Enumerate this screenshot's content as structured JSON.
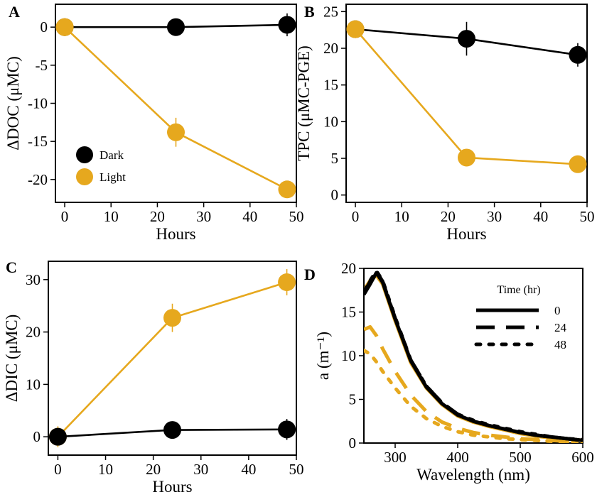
{
  "colors": {
    "dark": "#000000",
    "light": "#E6A81E"
  },
  "chart_data": [
    {
      "panel": "A",
      "type": "line",
      "xlabel": "Hours",
      "ylabel": "ΔDOC (μMC)",
      "xlim": [
        -2,
        50
      ],
      "ylim": [
        -23,
        3
      ],
      "xticks": [
        0,
        10,
        20,
        30,
        40,
        50
      ],
      "yticks": [
        0,
        -5,
        -10,
        -15,
        -20
      ],
      "legend": {
        "position": "bottom-left",
        "entries": [
          "Dark",
          "Light"
        ]
      },
      "series": [
        {
          "name": "Dark",
          "color": "#000000",
          "x": [
            0,
            24,
            48
          ],
          "y": [
            0,
            0,
            0.3
          ],
          "err": [
            0.3,
            0.5,
            1.5
          ]
        },
        {
          "name": "Light",
          "color": "#E6A81E",
          "x": [
            0,
            24,
            48
          ],
          "y": [
            0,
            -13.8,
            -21.3
          ],
          "err": [
            0.3,
            1.9,
            0.6
          ]
        }
      ]
    },
    {
      "panel": "B",
      "type": "line",
      "xlabel": "Hours",
      "ylabel": "TPC (μMC-PGE)",
      "xlim": [
        -2,
        50
      ],
      "ylim": [
        -1,
        26
      ],
      "xticks": [
        0,
        10,
        20,
        30,
        40,
        50
      ],
      "yticks": [
        0,
        5,
        10,
        15,
        20,
        25
      ],
      "series": [
        {
          "name": "Dark",
          "color": "#000000",
          "x": [
            0,
            24,
            48
          ],
          "y": [
            22.6,
            21.3,
            19.1
          ],
          "err": [
            0.5,
            2.3,
            1.6
          ]
        },
        {
          "name": "Light",
          "color": "#E6A81E",
          "x": [
            0,
            24,
            48
          ],
          "y": [
            22.6,
            5.1,
            4.2
          ],
          "err": [
            0.9,
            0.4,
            0.5
          ]
        }
      ]
    },
    {
      "panel": "C",
      "type": "line",
      "xlabel": "Hours",
      "ylabel": "ΔDIC (μMC)",
      "xlim": [
        -2,
        50
      ],
      "ylim": [
        -3.5,
        33.5
      ],
      "xticks": [
        0,
        10,
        20,
        30,
        40,
        50
      ],
      "yticks": [
        0,
        10,
        20,
        30
      ],
      "series": [
        {
          "name": "Dark",
          "color": "#000000",
          "x": [
            0,
            24,
            48
          ],
          "y": [
            0,
            1.3,
            1.4
          ],
          "err": [
            0.3,
            0.5,
            2.0
          ]
        },
        {
          "name": "Light",
          "color": "#E6A81E",
          "x": [
            0,
            24,
            48
          ],
          "y": [
            0,
            22.7,
            29.5
          ],
          "err": [
            2.0,
            2.7,
            2.5
          ]
        }
      ]
    },
    {
      "panel": "D",
      "type": "line",
      "xlabel": "Wavelength (nm)",
      "ylabel": "a (m⁻¹)",
      "xlim": [
        250,
        600
      ],
      "ylim": [
        0,
        20
      ],
      "xticks": [
        300,
        400,
        500,
        600
      ],
      "yticks": [
        0,
        5,
        10,
        15,
        20
      ],
      "legend": {
        "position": "top-right",
        "title": "Time (hr)",
        "entries": [
          "0",
          "24",
          "48"
        ]
      },
      "wavelengths": [
        250,
        260,
        270,
        280,
        300,
        325,
        350,
        375,
        400,
        425,
        450,
        475,
        500,
        525,
        550,
        575,
        600
      ],
      "series": [
        {
          "name": "Dark 0 hr",
          "color": "#000000",
          "style": "solid",
          "y": [
            17.0,
            18.2,
            19.5,
            18.4,
            14.2,
            9.4,
            6.4,
            4.5,
            3.2,
            2.5,
            2.0,
            1.6,
            1.2,
            0.9,
            0.7,
            0.5,
            0.3
          ]
        },
        {
          "name": "Dark 24 hr",
          "color": "#000000",
          "style": "dashed",
          "y": [
            17.2,
            18.5,
            19.6,
            18.5,
            14.3,
            9.5,
            6.5,
            4.6,
            3.3,
            2.5,
            2.0,
            1.6,
            1.2,
            0.9,
            0.7,
            0.5,
            0.3
          ]
        },
        {
          "name": "Dark 48 hr",
          "color": "#000000",
          "style": "dotted",
          "y": [
            17.4,
            18.6,
            19.7,
            18.6,
            14.4,
            9.5,
            6.5,
            4.6,
            3.3,
            2.6,
            2.1,
            1.7,
            1.3,
            1.0,
            0.7,
            0.5,
            0.4
          ]
        },
        {
          "name": "Light 0 hr",
          "color": "#E6A81E",
          "style": "solid",
          "y": [
            17.5,
            18.6,
            19.2,
            18.2,
            14.0,
            9.2,
            6.3,
            4.4,
            3.1,
            2.4,
            1.9,
            1.5,
            1.1,
            0.8,
            0.6,
            0.5,
            0.3
          ]
        },
        {
          "name": "Light 24 hr",
          "color": "#E6A81E",
          "style": "dashed",
          "y": [
            13.0,
            13.3,
            12.3,
            10.8,
            8.2,
            5.5,
            3.6,
            2.4,
            1.7,
            1.2,
            0.9,
            0.7,
            0.5,
            0.4,
            0.3,
            0.2,
            0.15
          ]
        },
        {
          "name": "Light 48 hr",
          "color": "#E6A81E",
          "style": "dotted",
          "y": [
            10.6,
            10.2,
            9.3,
            8.2,
            6.3,
            4.2,
            2.8,
            1.9,
            1.3,
            0.9,
            0.7,
            0.5,
            0.4,
            0.3,
            0.2,
            0.15,
            0.1
          ]
        }
      ]
    }
  ]
}
